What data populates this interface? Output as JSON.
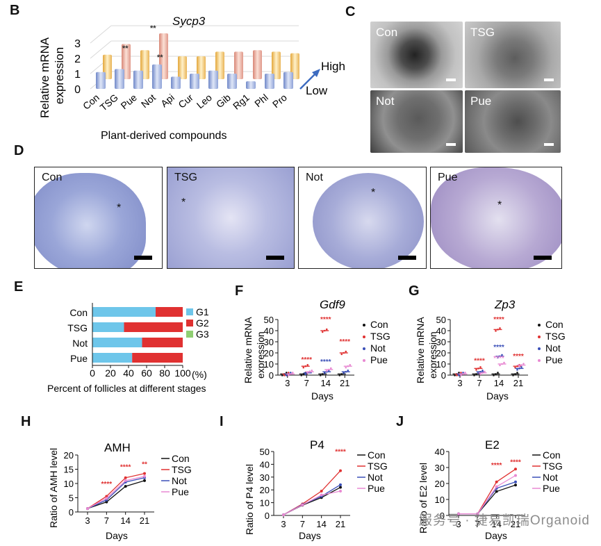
{
  "panels": {
    "A": {
      "label": "B",
      "title": "Sycp3",
      "ylabel_1": "Relative mRNA",
      "ylabel_2": "expression",
      "xlabel": "Plant-derived compounds",
      "high": "High",
      "low": "Low",
      "yticks": [
        "3",
        "2",
        "1",
        "0"
      ],
      "sig_1": "**",
      "sig_2": "**",
      "sig_3": "**"
    },
    "C": {
      "label": "C",
      "images": [
        "Con",
        "TSG",
        "Not",
        "Pue"
      ]
    },
    "D": {
      "label": "D",
      "images": [
        "Con",
        "TSG",
        "Not",
        "Pue"
      ],
      "markers": [
        "*",
        "*",
        "*",
        "*"
      ]
    },
    "E": {
      "label": "E",
      "xlabel": "Percent of follicles at different stages",
      "unit": "(%)",
      "legend": [
        "G1",
        "G2",
        "G3"
      ],
      "legend_colors": [
        "#6ec6ea",
        "#e03131",
        "#8fce72"
      ]
    },
    "F": {
      "label": "F",
      "title": "Gdf9",
      "ylabel_1": "Relative mRNA",
      "ylabel_2": "expression",
      "xlabel": "Days"
    },
    "G": {
      "label": "G",
      "title": "Zp3",
      "ylabel_1": "Relative mRNA",
      "ylabel_2": "expression",
      "xlabel": "Days"
    },
    "H": {
      "label": "H",
      "title": "AMH",
      "ylabel": "Ratio of AMH level",
      "xlabel": "Days"
    },
    "I": {
      "label": "I",
      "title": "P4",
      "ylabel": "Ratio of P4 level",
      "xlabel": "Days"
    },
    "J": {
      "label": "J",
      "title": "E2",
      "ylabel": "Ratio of E2 level",
      "xlabel": "Days"
    }
  },
  "watermark": "服务号 · 捷易凯瑞Organoid",
  "chart_data": [
    {
      "type": "bar",
      "panel": "A",
      "title": "Sycp3",
      "categories": [
        "Con",
        "TSG",
        "Pue",
        "Not",
        "Api",
        "Cur",
        "Leo",
        "Gib",
        "Rg1",
        "Phl",
        "Pro"
      ],
      "series": [
        {
          "name": "Low",
          "values": [
            1.1,
            1.3,
            1.2,
            1.6,
            0.8,
            1.0,
            1.2,
            1.0,
            0.5,
            1.0,
            1.1
          ]
        },
        {
          "name": "High",
          "values": [
            1.6,
            2.3,
            1.9,
            3.0,
            1.5,
            1.5,
            1.8,
            1.8,
            1.9,
            1.8,
            1.7
          ]
        }
      ],
      "ylim": [
        0,
        3
      ],
      "yticks": [
        0,
        1,
        2,
        3
      ]
    },
    {
      "type": "bar",
      "panel": "E",
      "orientation": "horizontal",
      "stacked": true,
      "categories": [
        "Con",
        "TSG",
        "Not",
        "Pue"
      ],
      "series": [
        {
          "name": "G1",
          "values": [
            70,
            35,
            55,
            44
          ]
        },
        {
          "name": "G2",
          "values": [
            30,
            65,
            45,
            56
          ]
        },
        {
          "name": "G3",
          "values": [
            0,
            0,
            0,
            0
          ]
        }
      ],
      "xlim": [
        0,
        100
      ],
      "xticks": [
        0,
        20,
        40,
        60,
        80,
        100
      ]
    },
    {
      "type": "scatter",
      "panel": "F",
      "title": "Gdf9",
      "x": [
        "3",
        "7",
        "14",
        "21"
      ],
      "series": [
        {
          "name": "Con",
          "values": [
            1,
            1,
            1,
            1
          ]
        },
        {
          "name": "TSG",
          "values": [
            1,
            8,
            40,
            20
          ]
        },
        {
          "name": "Not",
          "values": [
            1,
            2,
            3,
            3
          ]
        },
        {
          "name": "Pue",
          "values": [
            1,
            3,
            5,
            8
          ]
        }
      ],
      "ylim": [
        0,
        50
      ],
      "yticks": [
        0,
        10,
        20,
        30,
        40,
        50
      ],
      "significance": [
        {
          "x": "7",
          "value": 12,
          "text": "****"
        },
        {
          "x": "14",
          "value": 48,
          "text": "****"
        },
        {
          "x": "21",
          "value": 28,
          "text": "****"
        },
        {
          "x": "14",
          "value": 10,
          "text": "****",
          "series": "Not"
        }
      ]
    },
    {
      "type": "scatter",
      "panel": "G",
      "title": "Zp3",
      "x": [
        "3",
        "7",
        "14",
        "21"
      ],
      "series": [
        {
          "name": "Con",
          "values": [
            1,
            1,
            1,
            1
          ]
        },
        {
          "name": "TSG",
          "values": [
            1,
            6,
            41,
            8
          ]
        },
        {
          "name": "Not",
          "values": [
            1,
            3,
            17,
            6
          ]
        },
        {
          "name": "Pue",
          "values": [
            1,
            2,
            10,
            9
          ]
        }
      ],
      "ylim": [
        0,
        50
      ],
      "yticks": [
        0,
        10,
        20,
        30,
        40,
        50
      ],
      "significance": [
        {
          "x": "7",
          "value": 11,
          "text": "****"
        },
        {
          "x": "14",
          "value": 48,
          "text": "****"
        },
        {
          "x": "14",
          "value": 23,
          "text": "****",
          "series": "Not"
        },
        {
          "x": "14",
          "value": 13,
          "text": "****",
          "series": "Pue"
        },
        {
          "x": "21",
          "value": 15,
          "text": "****"
        }
      ]
    },
    {
      "type": "line",
      "panel": "H",
      "title": "AMH",
      "x": [
        "3",
        "7",
        "14",
        "21"
      ],
      "series": [
        {
          "name": "Con",
          "values": [
            1.2,
            3.5,
            9.0,
            11.0
          ]
        },
        {
          "name": "TSG",
          "values": [
            1.2,
            5.5,
            12.0,
            13.5
          ]
        },
        {
          "name": "Not",
          "values": [
            1.2,
            4.2,
            10.5,
            12.0
          ]
        },
        {
          "name": "Pue",
          "values": [
            1.2,
            4.8,
            11.0,
            12.5
          ]
        }
      ],
      "ylim": [
        0,
        20
      ],
      "yticks": [
        0,
        5,
        10,
        15,
        20
      ],
      "significance": [
        {
          "x": "7",
          "value": 9,
          "text": "****"
        },
        {
          "x": "14",
          "value": 15,
          "text": "****"
        },
        {
          "x": "21",
          "value": 16,
          "text": "**"
        }
      ]
    },
    {
      "type": "line",
      "panel": "I",
      "title": "P4",
      "x": [
        "3",
        "7",
        "14",
        "21"
      ],
      "series": [
        {
          "name": "Con",
          "values": [
            0.5,
            8.0,
            14.0,
            22.0
          ]
        },
        {
          "name": "TSG",
          "values": [
            0.5,
            9.0,
            19.0,
            35.0
          ]
        },
        {
          "name": "Not",
          "values": [
            0.5,
            8.5,
            15.0,
            24.0
          ]
        },
        {
          "name": "Pue",
          "values": [
            0.5,
            8.2,
            16.0,
            19.0
          ]
        }
      ],
      "ylim": [
        0,
        50
      ],
      "yticks": [
        0,
        10,
        20,
        30,
        40,
        50
      ],
      "significance": [
        {
          "x": "21",
          "value": 48,
          "text": "****"
        }
      ]
    },
    {
      "type": "line",
      "panel": "J",
      "title": "E2",
      "x": [
        "3",
        "7",
        "14",
        "21"
      ],
      "series": [
        {
          "name": "Con",
          "values": [
            1.0,
            1.0,
            15.0,
            19.0
          ]
        },
        {
          "name": "TSG",
          "values": [
            1.0,
            1.0,
            21.0,
            29.0
          ]
        },
        {
          "name": "Not",
          "values": [
            1.0,
            1.0,
            17.0,
            21.0
          ]
        },
        {
          "name": "Pue",
          "values": [
            1.0,
            1.0,
            18.0,
            25.0
          ]
        }
      ],
      "ylim": [
        0,
        40
      ],
      "yticks": [
        0,
        10,
        20,
        30,
        40
      ],
      "significance": [
        {
          "x": "14",
          "value": 30,
          "text": "****"
        },
        {
          "x": "21",
          "value": 32,
          "text": "****"
        }
      ]
    }
  ]
}
